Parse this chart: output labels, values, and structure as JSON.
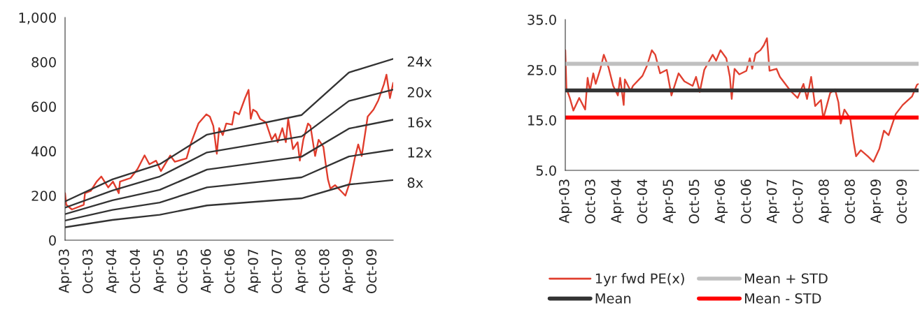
{
  "chart_data": [
    {
      "type": "line",
      "xlim": [
        "2003-04-01",
        "2010-03-09"
      ],
      "ylim": [
        0,
        1000
      ],
      "xticks": [
        {
          "value": "2003-04-01",
          "label": "Apr-03"
        },
        {
          "value": "2003-10-01",
          "label": "Oct-03"
        },
        {
          "value": "2004-04-01",
          "label": "Apr-04"
        },
        {
          "value": "2004-10-01",
          "label": "Oct-04"
        },
        {
          "value": "2005-04-01",
          "label": "Apr-05"
        },
        {
          "value": "2005-10-01",
          "label": "Oct-05"
        },
        {
          "value": "2006-04-01",
          "label": "Apr-06"
        },
        {
          "value": "2006-10-01",
          "label": "Oct-06"
        },
        {
          "value": "2007-04-01",
          "label": "Apr-07"
        },
        {
          "value": "2007-10-01",
          "label": "Oct-07"
        },
        {
          "value": "2008-04-01",
          "label": "Apr-08"
        },
        {
          "value": "2008-10-01",
          "label": "Oct-08"
        },
        {
          "value": "2009-04-01",
          "label": "Apr-09"
        },
        {
          "value": "2009-10-01",
          "label": "Oct-09"
        }
      ],
      "yticks": [
        0,
        200,
        400,
        600,
        800,
        {
          "value": 1000,
          "label": "1,000"
        }
      ],
      "grid": false,
      "legend": false,
      "series": [
        {
          "color": "#e03c2c",
          "x": [
            "2003-04-01",
            "2003-04-10",
            "2003-05-24",
            "2003-08-23",
            "2003-09-02",
            "2003-10-16",
            "2003-12-01",
            "2004-01-06",
            "2004-02-28",
            "2004-04-05",
            "2004-05-20",
            "2004-05-29",
            "2004-08-19",
            "2004-10-12",
            "2004-12-05",
            "2005-01-11",
            "2005-03-04",
            "2005-04-10",
            "2005-06-21",
            "2005-07-27",
            "2005-10-25",
            "2005-12-01",
            "2006-01-25",
            "2006-03-27",
            "2006-04-23",
            "2006-05-20",
            "2006-06-16",
            "2006-07-04",
            "2006-08-01",
            "2006-08-28",
            "2006-10-12",
            "2006-10-30",
            "2006-12-05",
            "2007-01-20",
            "2007-02-16",
            "2007-03-05",
            "2007-03-23",
            "2007-04-19",
            "2007-05-16",
            "2007-06-30",
            "2007-08-14",
            "2007-09-11",
            "2007-09-29",
            "2007-11-04",
            "2007-12-01",
            "2007-12-19",
            "2008-01-25",
            "2008-03-01",
            "2008-03-18",
            "2008-04-14",
            "2008-05-20",
            "2008-06-08",
            "2008-07-14",
            "2008-08-10",
            "2008-09-16",
            "2008-10-03",
            "2008-10-21",
            "2008-11-09",
            "2008-12-15",
            "2009-01-29",
            "2009-03-05",
            "2009-04-10",
            "2009-05-16",
            "2009-06-12",
            "2009-07-09",
            "2009-08-24",
            "2009-10-08",
            "2009-11-14",
            "2009-12-28",
            "2010-01-16",
            "2010-02-12",
            "2010-03-09"
          ],
          "values": [
            211,
            159,
            138,
            159,
            211,
            221,
            263,
            286,
            237,
            263,
            211,
            263,
            279,
            320,
            381,
            341,
            357,
            310,
            380,
            352,
            367,
            440,
            524,
            565,
            555,
            513,
            388,
            503,
            472,
            524,
            519,
            576,
            565,
            638,
            675,
            545,
            586,
            576,
            545,
            529,
            451,
            477,
            440,
            503,
            440,
            545,
            409,
            440,
            357,
            451,
            524,
            513,
            378,
            451,
            419,
            346,
            273,
            232,
            247,
            221,
            200,
            263,
            367,
            430,
            378,
            555,
            586,
            628,
            701,
            743,
            638,
            706
          ]
        },
        {
          "name": "24x",
          "color": "#333333",
          "x": [
            "2003-04-01",
            "2004-04-01",
            "2005-04-01",
            "2006-04-01",
            "2008-04-01",
            "2009-04-01",
            "2010-03-09"
          ],
          "values": [
            174,
            273,
            341,
            474,
            562,
            753,
            814
          ]
        },
        {
          "name": "20x",
          "color": "#333333",
          "x": [
            "2003-04-01",
            "2004-04-01",
            "2005-04-01",
            "2006-04-01",
            "2008-04-01",
            "2009-04-01",
            "2010-03-09"
          ],
          "values": [
            146,
            223,
            286,
            394,
            466,
            625,
            676
          ]
        },
        {
          "name": "16x",
          "color": "#333333",
          "x": [
            "2003-04-01",
            "2004-04-01",
            "2005-04-01",
            "2006-04-01",
            "2008-04-01",
            "2009-04-01",
            "2010-03-09"
          ],
          "values": [
            117,
            179,
            226,
            317,
            375,
            501,
            541
          ]
        },
        {
          "name": "12x",
          "color": "#333333",
          "x": [
            "2003-04-01",
            "2004-04-01",
            "2005-04-01",
            "2006-04-01",
            "2008-04-01",
            "2009-04-01",
            "2010-03-09"
          ],
          "values": [
            88,
            136,
            169,
            237,
            282,
            376,
            406
          ]
        },
        {
          "name": "8x",
          "color": "#333333",
          "x": [
            "2003-04-01",
            "2004-04-01",
            "2005-04-01",
            "2006-04-01",
            "2008-04-01",
            "2009-04-01",
            "2010-03-09"
          ],
          "values": [
            58,
            91,
            114,
            156,
            188,
            250,
            270
          ]
        }
      ]
    },
    {
      "type": "line",
      "xlim": [
        "2003-04-01",
        "2010-01-20"
      ],
      "ylim": [
        5,
        35
      ],
      "xticks": [
        {
          "value": "2003-04-01",
          "label": "Apr-03"
        },
        {
          "value": "2003-10-01",
          "label": "Oct-03"
        },
        {
          "value": "2004-04-01",
          "label": "Apr-04"
        },
        {
          "value": "2004-10-01",
          "label": "Oct-04"
        },
        {
          "value": "2005-04-01",
          "label": "Apr-05"
        },
        {
          "value": "2005-10-01",
          "label": "Oct-05"
        },
        {
          "value": "2006-04-01",
          "label": "Apr-06"
        },
        {
          "value": "2006-10-01",
          "label": "Oct-06"
        },
        {
          "value": "2007-04-01",
          "label": "Apr-07"
        },
        {
          "value": "2007-10-01",
          "label": "Oct-07"
        },
        {
          "value": "2008-04-01",
          "label": "Apr-08"
        },
        {
          "value": "2008-10-01",
          "label": "Oct-08"
        },
        {
          "value": "2009-04-01",
          "label": "Apr-09"
        },
        {
          "value": "2009-10-01",
          "label": "Oct-09"
        }
      ],
      "yticks": [
        {
          "value": 5,
          "label": "5.0"
        },
        {
          "value": 15,
          "label": "15.0"
        },
        {
          "value": 25,
          "label": "25.0"
        },
        {
          "value": 35,
          "label": "35.0"
        }
      ],
      "grid": false,
      "legend": "bottom",
      "series": [
        {
          "name": "1yr fwd PE(x)",
          "color": "#e04030",
          "x": [
            "2003-04-01",
            "2003-04-09",
            "2003-05-03",
            "2003-05-28",
            "2003-07-08",
            "2003-08-19",
            "2003-09-05",
            "2003-09-21",
            "2003-10-15",
            "2003-11-01",
            "2003-12-04",
            "2003-12-28",
            "2004-01-30",
            "2004-03-03",
            "2004-04-05",
            "2004-04-21",
            "2004-05-16",
            "2004-05-24",
            "2004-07-04",
            "2004-07-20",
            "2004-09-25",
            "2004-10-28",
            "2004-11-30",
            "2004-12-24",
            "2005-01-27",
            "2005-03-15",
            "2005-04-17",
            "2005-06-06",
            "2005-07-17",
            "2005-09-13",
            "2005-10-07",
            "2005-11-02",
            "2005-12-04",
            "2006-02-01",
            "2006-02-25",
            "2006-03-28",
            "2006-05-08",
            "2006-06-02",
            "2006-06-15",
            "2006-07-05",
            "2006-08-07",
            "2006-09-26",
            "2006-10-20",
            "2006-11-06",
            "2006-11-30",
            "2007-01-03",
            "2007-01-27",
            "2007-02-18",
            "2007-03-08",
            "2007-04-26",
            "2007-05-20",
            "2007-08-03",
            "2007-09-22",
            "2007-11-02",
            "2007-11-27",
            "2007-12-26",
            "2008-01-23",
            "2008-03-04",
            "2008-03-20",
            "2008-05-08",
            "2008-06-11",
            "2008-07-05",
            "2008-07-21",
            "2008-08-16",
            "2008-09-26",
            "2008-10-20",
            "2008-11-06",
            "2008-12-09",
            "2009-01-28",
            "2009-03-08",
            "2009-04-19",
            "2009-05-21",
            "2009-06-23",
            "2009-08-12",
            "2009-09-30",
            "2009-12-05",
            "2010-01-08",
            "2010-01-20"
          ],
          "values": [
            28.9,
            21.3,
            19.4,
            16.9,
            19.4,
            17.1,
            23.4,
            20.8,
            24.3,
            22.2,
            25.2,
            28.0,
            25.5,
            21.8,
            19.9,
            23.4,
            18.0,
            23.1,
            20.8,
            21.8,
            23.8,
            25.9,
            28.9,
            28.0,
            24.3,
            25.0,
            19.9,
            24.3,
            22.7,
            21.8,
            23.6,
            20.6,
            25.0,
            28.0,
            26.8,
            28.9,
            27.3,
            23.6,
            19.2,
            25.2,
            24.1,
            24.8,
            27.3,
            25.2,
            28.2,
            28.9,
            29.9,
            31.3,
            24.8,
            25.2,
            23.6,
            20.8,
            19.4,
            22.2,
            19.2,
            23.6,
            17.8,
            19.0,
            15.3,
            20.4,
            21.1,
            18.5,
            14.3,
            17.1,
            15.3,
            10.6,
            7.8,
            9.0,
            7.8,
            6.7,
            9.3,
            12.9,
            12.0,
            16.2,
            18.0,
            19.7,
            22.0,
            22.2
          ]
        }
      ],
      "ref_lines": [
        {
          "axis": "y",
          "value": 20.9,
          "label": "Mean",
          "color": "#333333"
        },
        {
          "axis": "y",
          "value": 26.2,
          "label": "Mean + STD",
          "color": "#c0c0c0"
        },
        {
          "axis": "y",
          "value": 15.5,
          "label": "Mean - STD",
          "color": "#ff0000"
        }
      ]
    }
  ]
}
